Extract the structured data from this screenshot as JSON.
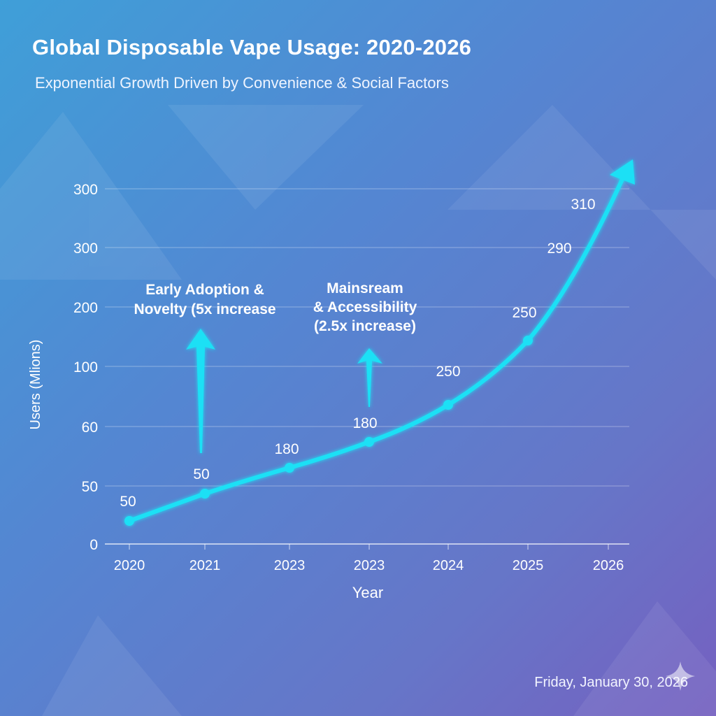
{
  "chart_data": {
    "type": "line",
    "title": "Global Disposable Vape Usage: 2020-2026",
    "subtitle": "Exponential Growth Driven by Convenience & Social Factors",
    "xlabel": "Year",
    "ylabel": "Users (Mlions)",
    "x_ticks": [
      "2020",
      "2021",
      "2023",
      "2023",
      "2024",
      "2025",
      "2026"
    ],
    "y_ticks": [
      "0",
      "50",
      "60",
      "100",
      "200",
      "300",
      "300"
    ],
    "data_labels": [
      "50",
      "50",
      "180",
      "180",
      "250",
      "250",
      "290",
      "310"
    ],
    "grid": "horizontal",
    "line_color": "#1ee0f5",
    "annotations": [
      {
        "lines": [
          "Early Adoption &",
          "Novelty (5x increase"
        ]
      },
      {
        "lines": [
          "Mainsream",
          "& Accessibility",
          "(2.5x increase)"
        ]
      }
    ]
  },
  "footer": {
    "date": "Friday, January 30, 2026",
    "icon": "sparkle-icon"
  }
}
